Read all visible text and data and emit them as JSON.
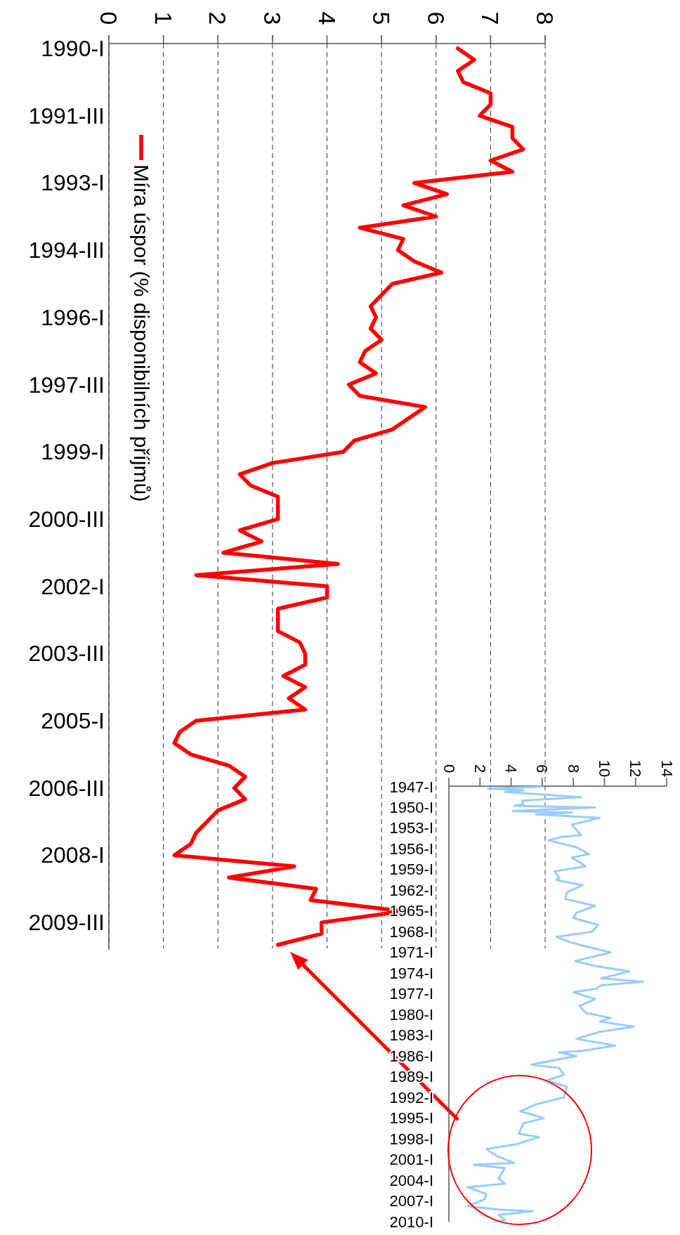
{
  "chart_data": [
    {
      "type": "line",
      "ylim": [
        2010,
        1990
      ],
      "xlim": [
        0,
        8
      ],
      "xticks": [
        0,
        1,
        2,
        3,
        4,
        5,
        6,
        7,
        8
      ],
      "yticks": [
        {
          "value": 1990,
          "label": "1990-I"
        },
        {
          "value": 1991.5,
          "label": "1991-III"
        },
        {
          "value": 1993,
          "label": "1993-I"
        },
        {
          "value": 1994.5,
          "label": "1994-III"
        },
        {
          "value": 1996,
          "label": "1996-I"
        },
        {
          "value": 1997.5,
          "label": "1997-III"
        },
        {
          "value": 1999,
          "label": "1999-I"
        },
        {
          "value": 2000.5,
          "label": "2000-III"
        },
        {
          "value": 2002,
          "label": "2002-I"
        },
        {
          "value": 2003.5,
          "label": "2003-III"
        },
        {
          "value": 2005,
          "label": "2005-I"
        },
        {
          "value": 2006.5,
          "label": "2006-III"
        },
        {
          "value": 2008,
          "label": "2008-I"
        },
        {
          "value": 2009.5,
          "label": "2009-III"
        }
      ],
      "grid": "x",
      "legend": "top left",
      "marker": "none",
      "line_style": "solid",
      "series": [
        {
          "name": "Míra úspor (% disponibilních příjmů)",
          "color": "#ff0000",
          "values": [
            1990,
            1990.25,
            1990.5,
            1990.75,
            1991,
            1991.25,
            1991.5,
            1991.75,
            1992,
            1992.25,
            1992.5,
            1992.75,
            1993,
            1993.25,
            1993.5,
            1993.75,
            1994,
            1994.25,
            1994.5,
            1994.75,
            1995,
            1995.25,
            1995.5,
            1995.75,
            1996,
            1996.25,
            1996.5,
            1996.75,
            1997,
            1997.25,
            1997.5,
            1997.75,
            1998,
            1998.25,
            1998.5,
            1998.75,
            1999,
            1999.25,
            1999.5,
            1999.75,
            2000,
            2000.25,
            2000.5,
            2000.75,
            2001,
            2001.25,
            2001.5,
            2001.75,
            2002,
            2002.25,
            2002.5,
            2002.75,
            2003,
            2003.25,
            2003.5,
            2003.75,
            2004,
            2004.25,
            2004.5,
            2004.75,
            2005,
            2005.25,
            2005.5,
            2005.75,
            2006,
            2006.25,
            2006.5,
            2006.75,
            2007,
            2007.25,
            2007.5,
            2007.75,
            2008,
            2008.25,
            2008.5,
            2008.75,
            2009,
            2009.25,
            2009.5,
            2009.75,
            2010
          ],
          "x": [
            6.4,
            6.7,
            6.4,
            6.5,
            7.0,
            7.0,
            6.8,
            7.4,
            7.4,
            7.6,
            7.0,
            7.4,
            5.6,
            6.2,
            5.4,
            6.0,
            4.6,
            5.4,
            5.3,
            5.6,
            6.1,
            5.2,
            5.0,
            4.8,
            4.9,
            4.8,
            5.0,
            4.7,
            4.6,
            4.9,
            4.4,
            4.6,
            5.8,
            5.5,
            5.2,
            4.5,
            4.3,
            3.0,
            2.4,
            2.6,
            3.1,
            3.1,
            3.1,
            2.4,
            2.8,
            2.1,
            4.2,
            1.6,
            4.0,
            4.0,
            3.1,
            3.1,
            3.1,
            3.5,
            3.6,
            3.6,
            3.2,
            3.6,
            3.3,
            3.6,
            1.6,
            1.3,
            1.2,
            1.5,
            2.2,
            2.5,
            2.3,
            2.5,
            2.0,
            1.8,
            1.6,
            1.5,
            1.2,
            3.4,
            2.2,
            3.8,
            3.7,
            5.4,
            3.9,
            3.9,
            3.1
          ]
        }
      ]
    },
    {
      "type": "line",
      "ylim": [
        2010,
        1947
      ],
      "xlim": [
        0,
        14
      ],
      "xticks": [
        0,
        2,
        4,
        6,
        8,
        10,
        12,
        14
      ],
      "yticks": [
        {
          "value": 1947,
          "label": "1947-I"
        },
        {
          "value": 1950,
          "label": "1950-I"
        },
        {
          "value": 1953,
          "label": "1953-I"
        },
        {
          "value": 1956,
          "label": "1956-I"
        },
        {
          "value": 1959,
          "label": "1959-I"
        },
        {
          "value": 1962,
          "label": "1962-I"
        },
        {
          "value": 1965,
          "label": "1965-I"
        },
        {
          "value": 1968,
          "label": "1968-I"
        },
        {
          "value": 1971,
          "label": "1971-I"
        },
        {
          "value": 1974,
          "label": "1974-I"
        },
        {
          "value": 1977,
          "label": "1977-I"
        },
        {
          "value": 1980,
          "label": "1980-I"
        },
        {
          "value": 1983,
          "label": "1983-I"
        },
        {
          "value": 1986,
          "label": "1986-I"
        },
        {
          "value": 1989,
          "label": "1989-I"
        },
        {
          "value": 1992,
          "label": "1992-I"
        },
        {
          "value": 1995,
          "label": "1995-I"
        },
        {
          "value": 1998,
          "label": "1998-I"
        },
        {
          "value": 2001,
          "label": "2001-I"
        },
        {
          "value": 2004,
          "label": "2004-I"
        },
        {
          "value": 2007,
          "label": "2007-I"
        },
        {
          "value": 2010,
          "label": "2010-I"
        }
      ],
      "marker": "none",
      "line_style": "solid",
      "series": [
        {
          "color": "#99ccff",
          "values": [
            1947,
            1947.25,
            1947.5,
            1947.75,
            1948.5,
            1949,
            1949.5,
            1949.75,
            1950,
            1950.5,
            1950.75,
            1951,
            1951.5,
            1952,
            1952.5,
            1953.5,
            1954,
            1954.25,
            1954.75,
            1955.75,
            1956.75,
            1957.25,
            1958.5,
            1959.25,
            1960.25,
            1960.5,
            1961.25,
            1962.25,
            1963.25,
            1964.25,
            1965.25,
            1966,
            1967,
            1968,
            1968.75,
            1969.5,
            1970,
            1971,
            1972.25,
            1973,
            1973.75,
            1974.75,
            1975.25,
            1975.75,
            1976.25,
            1976.75,
            1977.75,
            1978.75,
            1979.75,
            1980.5,
            1981,
            1981.75,
            1982.5,
            1983.5,
            1984.5,
            1985.25,
            1985.5,
            1986,
            1987.25,
            1987.75,
            1988.75,
            1989.5,
            1990.5,
            1992,
            1993,
            1994,
            1995,
            1995.75,
            1997.25,
            1997.75,
            1998.75,
            1999.5,
            2000.5,
            2001.5,
            2001.75,
            2002.25,
            2003.75,
            2004.5,
            2005,
            2006,
            2006.75,
            2007.75,
            2008.25,
            2008.5,
            2009,
            2009.75,
            2010
          ],
          "x": [
            6.0,
            2.5,
            4.8,
            3.6,
            8.5,
            4.7,
            4.8,
            4.2,
            9.4,
            4.1,
            7.9,
            5.6,
            9.7,
            8.8,
            7.9,
            8.3,
            8.5,
            7.3,
            6.4,
            8.2,
            9.0,
            7.9,
            8.8,
            6.8,
            7.1,
            6.9,
            8.6,
            7.6,
            7.5,
            9.4,
            8.2,
            8.0,
            9.6,
            9.2,
            6.9,
            7.8,
            8.6,
            10.4,
            8.1,
            9.5,
            11.6,
            9.8,
            12.5,
            9.8,
            9.5,
            8.0,
            9.4,
            8.4,
            8.8,
            10.4,
            9.7,
            11.9,
            9.7,
            8.2,
            10.7,
            8.6,
            7.1,
            8.2,
            5.3,
            7.1,
            7.4,
            6.3,
            7.6,
            7.4,
            5.6,
            4.6,
            6.1,
            4.8,
            4.5,
            5.8,
            4.4,
            2.4,
            3.1,
            4.2,
            1.6,
            3.6,
            3.2,
            3.6,
            1.2,
            2.4,
            2.3,
            1.2,
            3.2,
            5.4,
            3.2,
            3.6,
            3.0
          ]
        }
      ]
    }
  ]
}
